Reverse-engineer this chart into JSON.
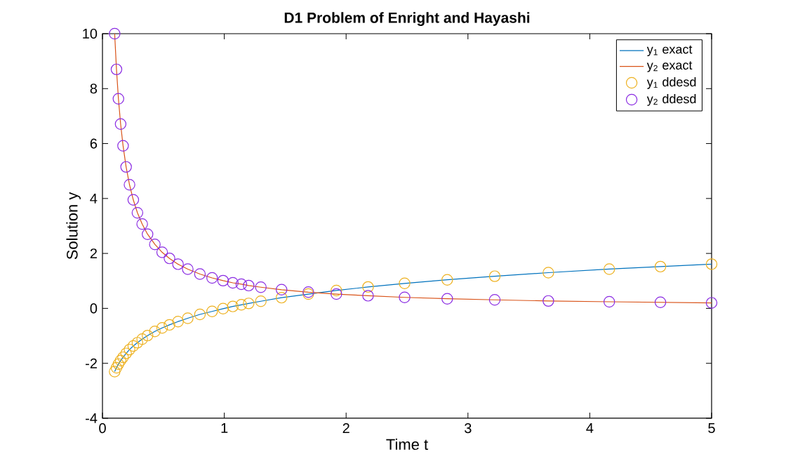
{
  "chart_data": {
    "type": "line",
    "title": "D1 Problem of Enright and Hayashi",
    "xlabel": "Time t",
    "ylabel": "Solution y",
    "xlim": [
      0,
      5
    ],
    "ylim": [
      -4,
      10
    ],
    "xticks": [
      0,
      1,
      2,
      3,
      4,
      5
    ],
    "yticks": [
      -4,
      -2,
      0,
      2,
      4,
      6,
      8,
      10
    ],
    "legend": "top right",
    "series": [
      {
        "name": "y$_{1}$ exact",
        "marker": "none",
        "line_style": "solid",
        "color": "#0072bd",
        "x": [
          0.1,
          0.115,
          0.131,
          0.149,
          0.169,
          0.194,
          0.222,
          0.253,
          0.287,
          0.326,
          0.37,
          0.43,
          0.49,
          0.55,
          0.62,
          0.7,
          0.8,
          0.9,
          0.99,
          1.07,
          1.14,
          1.2,
          1.3,
          1.47,
          1.69,
          1.92,
          2.18,
          2.48,
          2.83,
          3.22,
          3.66,
          4.16,
          4.58,
          5.0
        ],
        "values": [
          -2.3,
          -2.16,
          -2.03,
          -1.9,
          -1.78,
          -1.64,
          -1.5,
          -1.37,
          -1.25,
          -1.12,
          -0.99,
          -0.84,
          -0.71,
          -0.6,
          -0.48,
          -0.36,
          -0.22,
          -0.11,
          -0.01,
          0.07,
          0.13,
          0.18,
          0.26,
          0.39,
          0.52,
          0.65,
          0.78,
          0.91,
          1.04,
          1.17,
          1.3,
          1.43,
          1.52,
          1.61
        ]
      },
      {
        "name": "y$_{2}$ exact",
        "marker": "none",
        "line_style": "solid",
        "color": "#d95319",
        "x": [
          0.1,
          0.115,
          0.131,
          0.149,
          0.169,
          0.194,
          0.222,
          0.253,
          0.287,
          0.326,
          0.37,
          0.43,
          0.49,
          0.55,
          0.62,
          0.7,
          0.8,
          0.9,
          0.99,
          1.07,
          1.14,
          1.2,
          1.3,
          1.47,
          1.69,
          1.92,
          2.18,
          2.48,
          2.83,
          3.22,
          3.66,
          4.16,
          4.58,
          5.0
        ],
        "values": [
          10,
          8.7,
          7.63,
          6.71,
          5.92,
          5.15,
          4.5,
          3.95,
          3.48,
          3.07,
          2.7,
          2.33,
          2.04,
          1.82,
          1.61,
          1.43,
          1.25,
          1.11,
          1.01,
          0.93,
          0.88,
          0.83,
          0.77,
          0.68,
          0.59,
          0.52,
          0.46,
          0.4,
          0.35,
          0.31,
          0.27,
          0.24,
          0.22,
          0.2
        ]
      },
      {
        "name": "y$_{1}$ ddesd",
        "type": "scatter",
        "marker": "circle",
        "color": "#edb120",
        "x": [
          0.1,
          0.115,
          0.131,
          0.149,
          0.169,
          0.194,
          0.222,
          0.253,
          0.287,
          0.326,
          0.37,
          0.43,
          0.49,
          0.55,
          0.62,
          0.7,
          0.8,
          0.9,
          0.99,
          1.07,
          1.14,
          1.2,
          1.3,
          1.47,
          1.69,
          1.92,
          2.18,
          2.48,
          2.83,
          3.22,
          3.66,
          4.16,
          4.58,
          5.0
        ],
        "values": [
          -2.3,
          -2.16,
          -2.03,
          -1.9,
          -1.78,
          -1.64,
          -1.5,
          -1.37,
          -1.25,
          -1.12,
          -0.99,
          -0.84,
          -0.71,
          -0.6,
          -0.48,
          -0.36,
          -0.22,
          -0.11,
          -0.01,
          0.07,
          0.13,
          0.18,
          0.26,
          0.39,
          0.52,
          0.65,
          0.78,
          0.91,
          1.04,
          1.17,
          1.3,
          1.43,
          1.52,
          1.61
        ]
      },
      {
        "name": "y$_{2}$ ddesd",
        "type": "scatter",
        "marker": "circle",
        "color": "#8a2be2",
        "x": [
          0.1,
          0.115,
          0.131,
          0.149,
          0.169,
          0.194,
          0.222,
          0.253,
          0.287,
          0.326,
          0.37,
          0.43,
          0.49,
          0.55,
          0.62,
          0.7,
          0.8,
          0.9,
          0.99,
          1.07,
          1.14,
          1.2,
          1.3,
          1.47,
          1.69,
          1.92,
          2.18,
          2.48,
          2.83,
          3.22,
          3.66,
          4.16,
          4.58,
          5.0
        ],
        "values": [
          10,
          8.7,
          7.63,
          6.71,
          5.92,
          5.15,
          4.5,
          3.95,
          3.48,
          3.07,
          2.7,
          2.33,
          2.04,
          1.82,
          1.61,
          1.43,
          1.25,
          1.11,
          1.01,
          0.93,
          0.88,
          0.83,
          0.77,
          0.68,
          0.59,
          0.52,
          0.46,
          0.4,
          0.35,
          0.31,
          0.27,
          0.24,
          0.22,
          0.2
        ]
      }
    ]
  }
}
